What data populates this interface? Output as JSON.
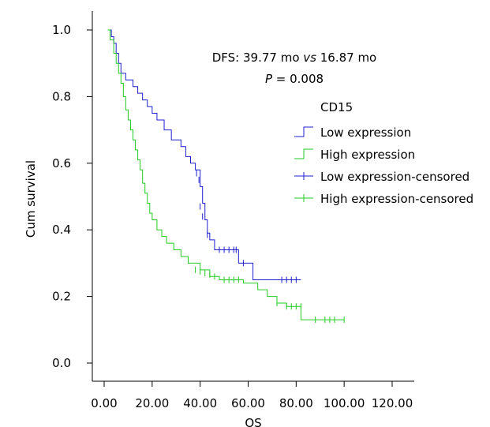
{
  "chart_data": {
    "type": "line",
    "subtype": "kaplan-meier-step",
    "xlabel": "OS",
    "ylabel": "Cum survival",
    "xlim": [
      0,
      120
    ],
    "ylim": [
      0,
      1
    ],
    "x_ticks": [
      "0.00",
      "20.00",
      "40.00",
      "60.00",
      "80.00",
      "100.00",
      "120.00"
    ],
    "y_ticks": [
      "0.0",
      "0.2",
      "0.4",
      "0.6",
      "0.8",
      "1.0"
    ],
    "grid": false,
    "annotation": {
      "line1_prefix": "DFS: 39.77 mo ",
      "line1_italic": "vs",
      "line1_suffix": " 16.87 mo",
      "line2_italic": "P",
      "line2_suffix": " = 0.008"
    },
    "legend": {
      "title": "CD15",
      "position": "top-right",
      "entries": [
        {
          "label": "Low expression",
          "kind": "line",
          "color": "#1f1fd0"
        },
        {
          "label": "High expression",
          "kind": "line",
          "color": "#22cc22"
        },
        {
          "label": "Low expression-censored",
          "kind": "censor",
          "color": "#1f1fd0"
        },
        {
          "label": "High expression-censored",
          "kind": "censor",
          "color": "#22cc22"
        }
      ]
    },
    "series": [
      {
        "name": "Low expression",
        "color": "#1f1fd0",
        "steps": [
          [
            1.5,
            1.0
          ],
          [
            3,
            0.98
          ],
          [
            4,
            0.96
          ],
          [
            5,
            0.93
          ],
          [
            6,
            0.9
          ],
          [
            7,
            0.87
          ],
          [
            9,
            0.85
          ],
          [
            12,
            0.83
          ],
          [
            14,
            0.81
          ],
          [
            16,
            0.79
          ],
          [
            18,
            0.77
          ],
          [
            20,
            0.75
          ],
          [
            22,
            0.73
          ],
          [
            25,
            0.7
          ],
          [
            28,
            0.67
          ],
          [
            32,
            0.65
          ],
          [
            34,
            0.62
          ],
          [
            36,
            0.6
          ],
          [
            38,
            0.58
          ],
          [
            40,
            0.53
          ],
          [
            41,
            0.48
          ],
          [
            42,
            0.43
          ],
          [
            43,
            0.39
          ],
          [
            44,
            0.37
          ],
          [
            46,
            0.34
          ],
          [
            56,
            0.3
          ],
          [
            62,
            0.25
          ],
          [
            82,
            0.25
          ]
        ],
        "censored": [
          [
            38.5,
            0.57
          ],
          [
            39.5,
            0.55
          ],
          [
            40,
            0.47
          ],
          [
            41,
            0.44
          ],
          [
            43,
            0.385
          ],
          [
            48,
            0.34
          ],
          [
            50,
            0.34
          ],
          [
            52,
            0.34
          ],
          [
            54,
            0.34
          ],
          [
            55,
            0.34
          ],
          [
            58,
            0.3
          ],
          [
            74,
            0.25
          ],
          [
            76,
            0.25
          ],
          [
            78,
            0.25
          ],
          [
            80,
            0.25
          ]
        ]
      },
      {
        "name": "High expression",
        "color": "#22cc22",
        "steps": [
          [
            1.5,
            1.0
          ],
          [
            2.5,
            0.97
          ],
          [
            4,
            0.93
          ],
          [
            5,
            0.9
          ],
          [
            6,
            0.87
          ],
          [
            7,
            0.84
          ],
          [
            8,
            0.8
          ],
          [
            9,
            0.76
          ],
          [
            10,
            0.73
          ],
          [
            11,
            0.7
          ],
          [
            12,
            0.67
          ],
          [
            13,
            0.64
          ],
          [
            14,
            0.61
          ],
          [
            15,
            0.58
          ],
          [
            16,
            0.54
          ],
          [
            17,
            0.51
          ],
          [
            18,
            0.48
          ],
          [
            19,
            0.45
          ],
          [
            20,
            0.43
          ],
          [
            22,
            0.4
          ],
          [
            24,
            0.38
          ],
          [
            26,
            0.36
          ],
          [
            29,
            0.34
          ],
          [
            32,
            0.32
          ],
          [
            35,
            0.3
          ],
          [
            40,
            0.28
          ],
          [
            44,
            0.26
          ],
          [
            48,
            0.25
          ],
          [
            58,
            0.24
          ],
          [
            64,
            0.22
          ],
          [
            68,
            0.2
          ],
          [
            72,
            0.18
          ],
          [
            76,
            0.17
          ],
          [
            82,
            0.13
          ],
          [
            100,
            0.13
          ]
        ],
        "censored": [
          [
            38,
            0.28
          ],
          [
            40,
            0.275
          ],
          [
            42,
            0.27
          ],
          [
            44,
            0.265
          ],
          [
            46,
            0.26
          ],
          [
            50,
            0.25
          ],
          [
            52,
            0.25
          ],
          [
            54,
            0.25
          ],
          [
            56,
            0.25
          ],
          [
            72,
            0.18
          ],
          [
            76,
            0.17
          ],
          [
            78,
            0.17
          ],
          [
            80,
            0.17
          ],
          [
            82,
            0.17
          ],
          [
            88,
            0.13
          ],
          [
            92,
            0.13
          ],
          [
            94,
            0.13
          ],
          [
            96,
            0.13
          ],
          [
            100,
            0.13
          ]
        ]
      }
    ]
  }
}
